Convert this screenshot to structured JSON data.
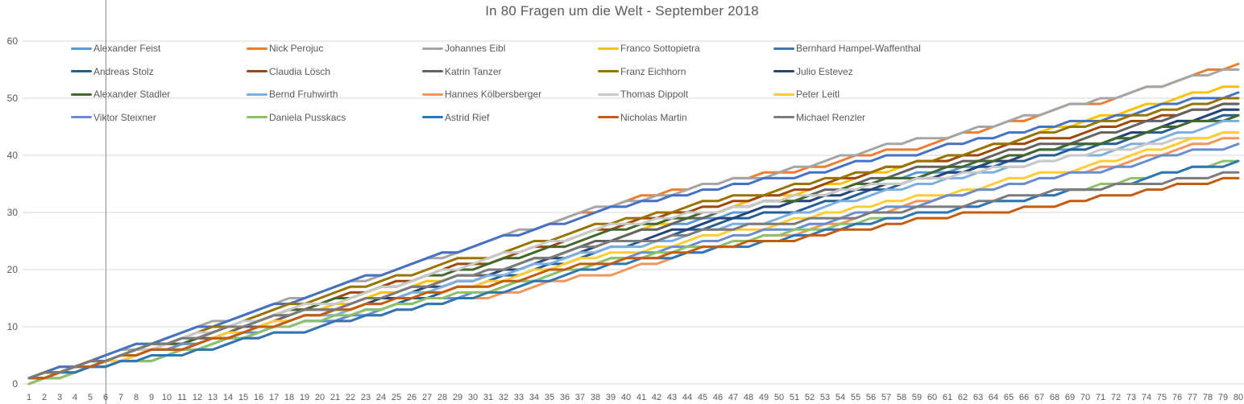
{
  "chart_data": {
    "type": "line",
    "title": "In 80 Fragen um die Welt - September 2018",
    "xlabel": "",
    "ylabel": "",
    "xlim": [
      1,
      80
    ],
    "ylim": [
      0,
      60
    ],
    "y_ticks": [
      0,
      10,
      20,
      30,
      40,
      50,
      60
    ],
    "x_ticks": [
      1,
      2,
      3,
      4,
      5,
      6,
      7,
      8,
      9,
      10,
      11,
      12,
      13,
      14,
      15,
      16,
      17,
      18,
      19,
      20,
      21,
      22,
      23,
      24,
      25,
      26,
      27,
      28,
      29,
      30,
      31,
      32,
      33,
      34,
      35,
      36,
      37,
      38,
      39,
      40,
      41,
      42,
      43,
      44,
      45,
      46,
      47,
      48,
      49,
      50,
      51,
      52,
      53,
      54,
      55,
      56,
      57,
      58,
      59,
      60,
      61,
      62,
      63,
      64,
      65,
      66,
      67,
      68,
      69,
      70,
      71,
      72,
      73,
      74,
      75,
      76,
      77,
      78,
      79,
      80
    ],
    "grid": "horizontal",
    "legend_position": "top-left-overlay-5-columns",
    "vertical_marker_x": 6,
    "series_note": "results = per-question correct(1)/wrong(0); line shows cumulative sum",
    "series": [
      {
        "name": "Alexander Feist",
        "color": "#5B9BD5",
        "final": 48,
        "results": "1101101110 1011011010 0110110110 0111011101 1010101010 1011011010 0101101001 0110110110"
      },
      {
        "name": "Nick Perojuc",
        "color": "#ED7D31",
        "final": 56,
        "results": "1110111101 1101111011 1110111101 1101111011 1010101010 0101101001 1101101110 0111011101"
      },
      {
        "name": "Johannes Eibl",
        "color": "#A5A5A5",
        "final": 55,
        "results": "1101111011 1110111101 1101111011 1110111101 0101101001 1011011010 0110110110 1011011010"
      },
      {
        "name": "Franco Sottopietra",
        "color": "#FFC000",
        "final": 52,
        "results": "0110110110 1101101110 1011011010 0111011101 1101101110 0110110110 0111011101 1011011010"
      },
      {
        "name": "Bernhard Hampel-Waffenthal",
        "color": "#4472C4",
        "final": 51,
        "results": "1110111101 1101111011 1110111101 1101101110 1010101010 0101101001 1010101010 0101101001"
      },
      {
        "name": "Andreas Stolz",
        "color": "#255E91",
        "final": 47,
        "results": "0101101001 1011011010 0110110110 1101101110 1011011010 0110110110 1010101010 1011011010"
      },
      {
        "name": "Claudia Lösch",
        "color": "#9E480E",
        "final": 49,
        "results": "1101101110 0111011101 1101101110 0111011101 1010101010 1011011010 0101101001 1010101010"
      },
      {
        "name": "Katrin Tanzer",
        "color": "#636363",
        "final": 49,
        "results": "1011011010 1101101110 0110110110 0111011101 1011011010 0110110110 0101101001 1011011010"
      },
      {
        "name": "Franz Eichhorn",
        "color": "#997300",
        "final": 50,
        "results": "0111011101 1110111101 1101101110 0111011101 0101101001 1010101010 1011011010 1010101010"
      },
      {
        "name": "Julio Estevez",
        "color": "#264478",
        "final": 48,
        "results": "1011011010 0110110110 1011011010 1101101110 0110110110 1010101010 1011011010 0110110110"
      },
      {
        "name": "Alexander Stadler",
        "color": "#43682B",
        "final": 47,
        "results": "1101101110 0111011101 1011011010 1101101110 1010101010 0101101001 1010101010 0101101001"
      },
      {
        "name": "Bernd Fruhwirth",
        "color": "#7CAFDD",
        "final": 46,
        "results": "0110110110 1011011010 0110110110 1011011010 0101101001 1011011010 1010101010 0110110110"
      },
      {
        "name": "Hannes Kölbersberger",
        "color": "#F1975A",
        "final": 43,
        "results": "1010101010 0101101001 1010101010 0101101001 1011011010 0110110110 1010101010 1011011010"
      },
      {
        "name": "Thomas Dippolt",
        "color": "#C9C9C9",
        "final": 44,
        "results": "0111011101 1101101110 0111011101 1101101110 0101001010 1001010010 0101001010 1001010010"
      },
      {
        "name": "Peter Leitl",
        "color": "#FFCD33",
        "final": 44,
        "results": "0110110110 1011011010 1010101010 1011011010 0101101001 1010101010 0101101001 1011011010"
      },
      {
        "name": "Viktor Steixner",
        "color": "#698ED0",
        "final": 42,
        "results": "1011011010 1010101010 0101101001 0110110110 1010101010 0101101001 1010101010 0101101001"
      },
      {
        "name": "Daniela Pusskacs",
        "color": "#8CC168",
        "final": 39,
        "results": "0101101001 1011011010 1010101010 0110110110 0101001010 1001010010 0101001010 1010101010"
      },
      {
        "name": "Astrid Rief",
        "color": "#2E75B6",
        "final": 39,
        "results": "1010101010 0101101001 1010101010 1011011010 1001010010 1010101010 0101001010 0101101001"
      },
      {
        "name": "Nicholas Martin",
        "color": "#C55A11",
        "final": 36,
        "results": "1011011010 0110110110 1010101010 0101101001 0010100100 0101001010 0100010010 1001010010"
      },
      {
        "name": "Michael Renzler",
        "color": "#7B7B7B",
        "final": 37,
        "results": "1101101110 1011011010 0110110110 1011011010 0010100100 0100010010 0010100100 0100010010"
      }
    ]
  },
  "colors": {
    "background": "#FFFFFF",
    "gridline": "#D9D9D9",
    "tick_label": "#595959",
    "title": "#595959",
    "marker_line": "#8C8C8C"
  }
}
